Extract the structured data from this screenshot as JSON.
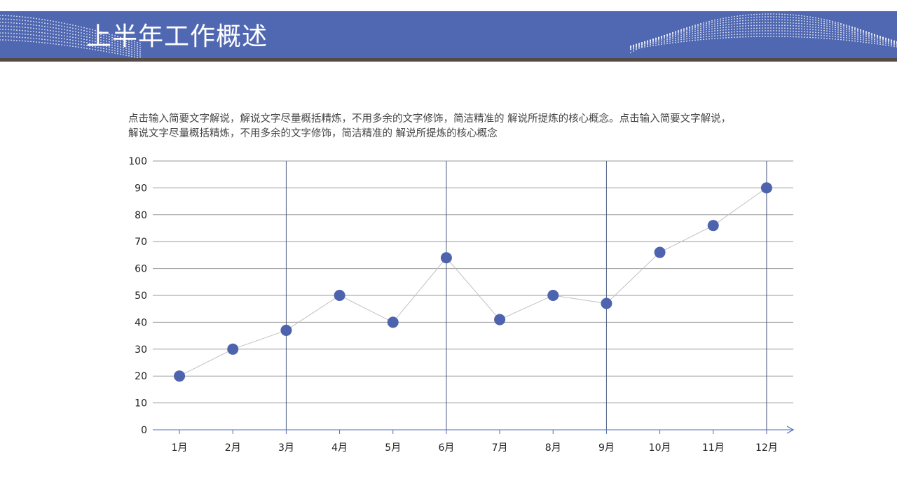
{
  "header": {
    "title": "上半年工作概述",
    "band_color": "#5068b2",
    "rule_color": "#544a46"
  },
  "description": {
    "line1": "点击输入简要文字解说，解说文字尽量概括精炼，不用多余的文字修饰，简洁精准的  解说所提炼的核心概念。点击输入简要文字解说，",
    "line2": "解说文字尽量概括精炼，不用多余的文字修饰，简洁精准的 解说所提炼的核心概念"
  },
  "chart_data": {
    "type": "line",
    "categories": [
      "1月",
      "2月",
      "3月",
      "4月",
      "5月",
      "6月",
      "7月",
      "8月",
      "9月",
      "10月",
      "11月",
      "12月"
    ],
    "series": [
      {
        "values": [
          20,
          30,
          37,
          50,
          40,
          64,
          41,
          50,
          47,
          66,
          76,
          90
        ]
      }
    ],
    "ylim": [
      0,
      100
    ],
    "yticks": [
      "0",
      "10",
      "20",
      "30",
      "40",
      "50",
      "60",
      "70",
      "80",
      "90",
      "100"
    ],
    "grid": true,
    "vertical_guides_at": [
      "3月",
      "6月",
      "9月",
      "12月"
    ],
    "marker_color": "#4e63ad",
    "line_color": "#c0c0c0",
    "grid_color": "#9a9a9a",
    "guide_color": "#4a5a80",
    "axis_color": "#4e6fb8"
  }
}
